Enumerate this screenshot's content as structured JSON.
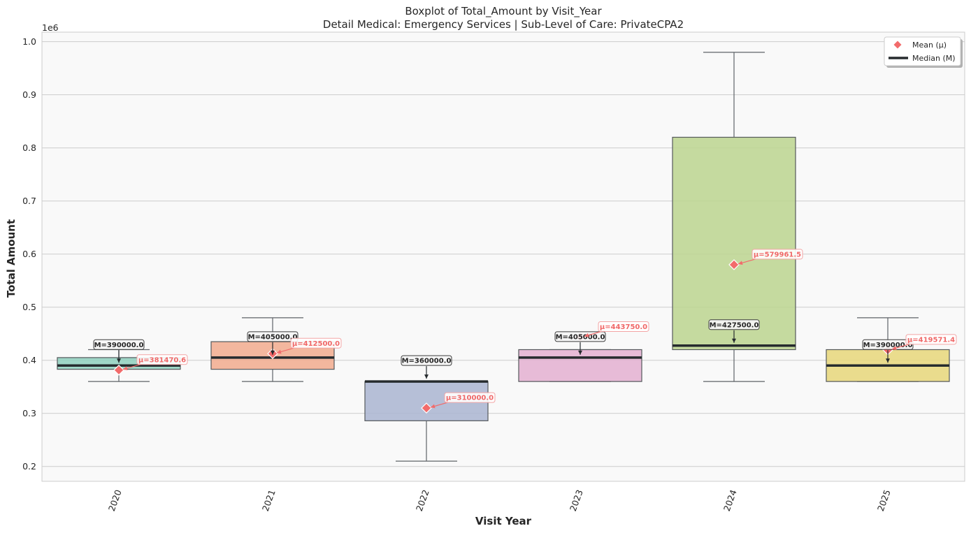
{
  "chart_data": {
    "type": "box",
    "title": "Boxplot of Total_Amount by Visit_Year",
    "subtitle": "Detail Medical: Emergency Services | Sub-Level of Care: PrivateCPA2",
    "xlabel": "Visit Year",
    "ylabel": "Total Amount",
    "y_offset_label": "1e6",
    "ylim": [
      0.172,
      1.018
    ],
    "yticks": [
      0.2,
      0.3,
      0.4,
      0.5,
      0.6,
      0.7,
      0.8,
      0.9,
      1.0
    ],
    "ytick_labels": [
      "0.2",
      "0.3",
      "0.4",
      "0.5",
      "0.6",
      "0.7",
      "0.8",
      "0.9",
      "1.0"
    ],
    "grid": true,
    "legend_position": "top-right",
    "legend": [
      {
        "label": "Mean (μ)",
        "marker": "diamond",
        "color": "#f26b6b"
      },
      {
        "label": "Median (M)",
        "marker": "line",
        "color": "#262b2e"
      }
    ],
    "categories": [
      "2020",
      "2021",
      "2022",
      "2023",
      "2024",
      "2025"
    ],
    "boxes": [
      {
        "category": "2020",
        "whisker_low": 0.36,
        "q1": 0.383,
        "median": 0.39,
        "q3": 0.405,
        "whisker_high": 0.42,
        "mean": 0.38147,
        "color": "#8fd0be",
        "median_label": "M=390000.0",
        "mean_label": "μ=381470.6"
      },
      {
        "category": "2021",
        "whisker_low": 0.36,
        "q1": 0.383,
        "median": 0.405,
        "q3": 0.435,
        "whisker_high": 0.48,
        "mean": 0.4125,
        "color": "#f2ab8e",
        "median_label": "M=405000.0",
        "mean_label": "μ=412500.0"
      },
      {
        "category": "2022",
        "whisker_low": 0.21,
        "q1": 0.286,
        "median": 0.36,
        "q3": 0.36,
        "whisker_high": 0.36,
        "mean": 0.31,
        "color": "#aab5d1",
        "median_label": "M=360000.0",
        "mean_label": "μ=310000.0"
      },
      {
        "category": "2023",
        "whisker_low": 0.36,
        "q1": 0.36,
        "median": 0.405,
        "q3": 0.42,
        "whisker_high": 0.42,
        "mean": 0.44375,
        "color": "#e4b0d1",
        "median_label": "M=405000.0",
        "mean_label": "μ=443750.0"
      },
      {
        "category": "2024",
        "whisker_low": 0.36,
        "q1": 0.42,
        "median": 0.4275,
        "q3": 0.82,
        "whisker_high": 0.98,
        "mean": 0.5799615,
        "color": "#bcd58f",
        "median_label": "M=427500.0",
        "mean_label": "μ=579961.5"
      },
      {
        "category": "2025",
        "whisker_low": 0.36,
        "q1": 0.36,
        "median": 0.39,
        "q3": 0.42,
        "whisker_high": 0.48,
        "mean": 0.4195714,
        "color": "#e8d77a",
        "median_label": "M=390000.0",
        "mean_label": "μ=419571.4"
      }
    ],
    "colors": {
      "plot_background": "#f9f9f9",
      "grid": "#cccccc",
      "median_line": "#262b2e",
      "whisker": "#5f6368",
      "mean_marker": "#f26b6b",
      "mean_label_text": "#f06868"
    }
  }
}
